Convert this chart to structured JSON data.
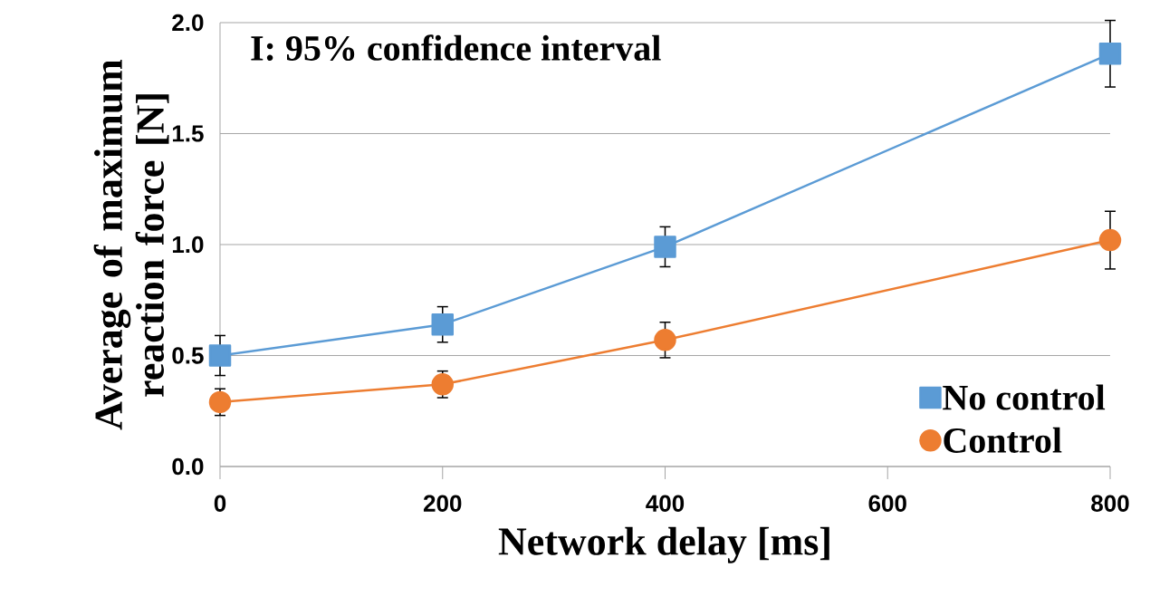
{
  "chart_data": {
    "type": "line",
    "xlabel": "Network delay [ms]",
    "ylabel": "Average of maximum reaction force [N]",
    "annotations": [
      "I: 95% confidence interval"
    ],
    "x": [
      0,
      200,
      400,
      800
    ],
    "series": [
      {
        "name": "No control",
        "color": "#5b9bd5",
        "marker": "square",
        "values": [
          0.5,
          0.64,
          0.99,
          1.86
        ],
        "errors": [
          0.09,
          0.08,
          0.09,
          0.15
        ]
      },
      {
        "name": "Control",
        "color": "#ed7d31",
        "marker": "circle",
        "values": [
          0.29,
          0.37,
          0.57,
          1.02
        ],
        "errors": [
          0.06,
          0.06,
          0.08,
          0.13
        ]
      }
    ],
    "xlim": [
      0,
      800
    ],
    "ylim": [
      0,
      2
    ],
    "xticks": [
      0,
      200,
      400,
      600,
      800
    ],
    "yticks": [
      {
        "value": 0,
        "label": "0.0"
      },
      0.5,
      {
        "value": 1,
        "label": "1.0"
      },
      1.5,
      {
        "value": 2,
        "label": "2.0"
      }
    ],
    "grid": "y",
    "legend": "bottom right",
    "line_style": "solid"
  }
}
